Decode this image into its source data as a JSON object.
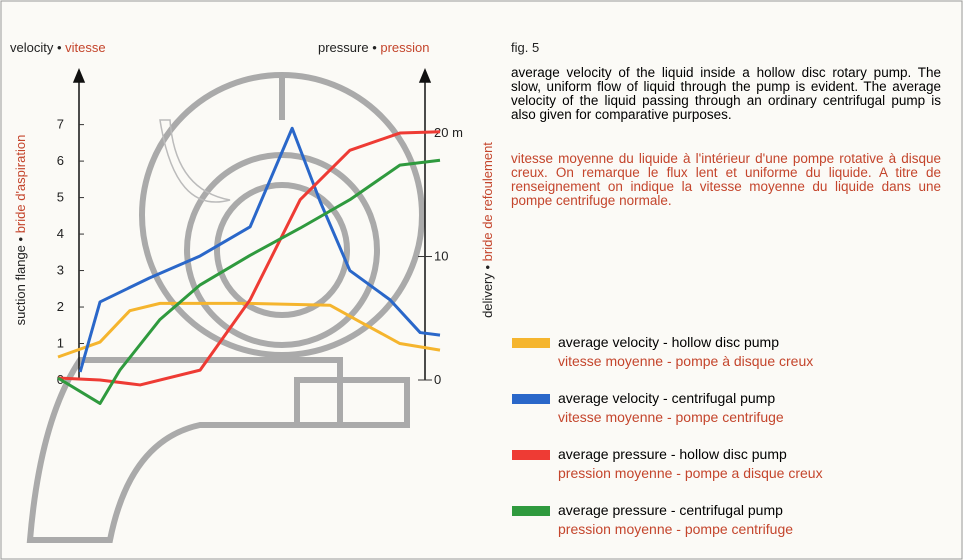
{
  "chart_data": {
    "type": "line",
    "title": "fig. 5",
    "description": "average velocity of the liquid inside a hollow disc rotary pump. The slow, uniform flow of liquid through the pump is evident. The average velocity of the liquid passing through an ordinary centrifugal pump is also given for comparative purposes.",
    "description_fr": "vitesse moyenne du liquide à l'intérieur d'une pompe rotative à disque creux. On remarque le flux lent et uniforme du liquide. A titre de renseignement on indique la vitesse moyenne du liquide dans une pompe centrifuge normale.",
    "y_title": "velocity •",
    "y_title_fr": "vitesse",
    "y2_title": "pressure •",
    "y2_title_fr": "pression",
    "y_label": "suction flange •",
    "y_label_fr": "bride d'aspiration",
    "y2_label": "delivery •",
    "y2_label_fr": "bride de refoulement",
    "ylim": [
      0,
      8.36
    ],
    "yticks": [
      0,
      1,
      2,
      3,
      4,
      5,
      6,
      7
    ],
    "y2lim": [
      0,
      24.7
    ],
    "y2ticks": [
      0,
      10,
      {
        "value": 20,
        "label": "20 m"
      }
    ],
    "xlim": [
      0,
      100
    ],
    "series": [
      {
        "name": "average velocity - hollow disc pump",
        "name_fr": "vitesse moyenne - pompe à disque creux",
        "color": "#f5b52e",
        "axis": "y",
        "x": [
          0,
          11,
          18.8,
          26.7,
          50.3,
          71.2,
          79,
          89.5,
          100
        ],
        "values": [
          0.63,
          1.04,
          1.9,
          2.1,
          2.1,
          2.05,
          1.6,
          1.0,
          0.82
        ]
      },
      {
        "name": "average velocity - centrifugal pump",
        "name_fr": "vitesse moyenne - pompe centrifuge",
        "color": "#2a67c9",
        "axis": "y",
        "x": [
          5.8,
          11,
          24,
          37.2,
          50.3,
          61.3,
          68.6,
          76.4,
          86.9,
          94.8,
          100
        ],
        "values": [
          0.22,
          2.14,
          2.8,
          3.4,
          4.2,
          6.9,
          4.9,
          3.0,
          2.2,
          1.3,
          1.23
        ]
      },
      {
        "name": "average pressure - hollow disc pump",
        "name_fr": "pression moyenne - pompe a disque creux",
        "color": "#ee3b34",
        "axis": "y2",
        "x": [
          0,
          11,
          21.5,
          37.2,
          50.3,
          63.4,
          76.4,
          89.5,
          100
        ],
        "values": [
          0.16,
          0,
          -0.4,
          0.8,
          6.5,
          14.6,
          18.6,
          20,
          20.1
        ]
      },
      {
        "name": "average pressure - centrifugal pump",
        "name_fr": "pression moyenne - pompe centrifuge",
        "color": "#2f9a3e",
        "axis": "y2",
        "x": [
          0,
          11,
          16.2,
          26.7,
          37.2,
          50.3,
          63.4,
          76.4,
          89.5,
          100
        ],
        "values": [
          0.16,
          -1.9,
          0.8,
          4.9,
          7.7,
          10.1,
          12.3,
          14.6,
          17.4,
          17.8
        ]
      }
    ]
  }
}
